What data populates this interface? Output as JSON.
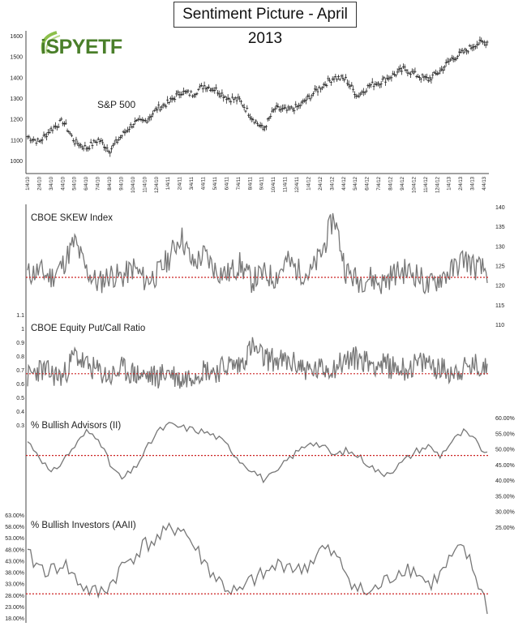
{
  "title": "Sentiment Picture - April 2013",
  "logo": {
    "text": "iSPYETF",
    "color": "#4a7f2a"
  },
  "colors": {
    "line": "#777777",
    "ref": "#cc2222",
    "text": "#222222"
  },
  "chart_data": [
    {
      "type": "ohlc",
      "label": "S&P 500",
      "yticks": [
        "1600",
        "1500",
        "1400",
        "1300",
        "1200",
        "1100",
        "1000"
      ],
      "ytick_values": [
        1600,
        1500,
        1400,
        1300,
        1200,
        1100,
        1000
      ],
      "ylim": [
        1000,
        1600
      ],
      "xticks": [
        "1/4/10",
        "2/4/10",
        "3/4/10",
        "4/4/10",
        "5/4/10",
        "6/4/10",
        "7/4/10",
        "8/4/10",
        "9/4/10",
        "10/4/10",
        "11/4/10",
        "12/4/10",
        "1/4/11",
        "2/4/11",
        "3/4/11",
        "4/4/11",
        "5/4/11",
        "6/4/11",
        "7/4/11",
        "8/4/11",
        "9/4/11",
        "10/4/11",
        "11/4/11",
        "12/4/11",
        "1/4/12",
        "2/4/12",
        "3/4/12",
        "4/4/12",
        "5/4/12",
        "6/4/12",
        "7/4/12",
        "8/4/12",
        "9/4/12",
        "10/4/12",
        "11/4/12",
        "12/4/12",
        "1/4/13",
        "2/4/13",
        "3/4/13",
        "4/4/13"
      ],
      "monthly_close": [
        1115,
        1090,
        1150,
        1190,
        1090,
        1060,
        1100,
        1050,
        1120,
        1180,
        1190,
        1250,
        1280,
        1330,
        1320,
        1360,
        1340,
        1300,
        1290,
        1210,
        1150,
        1250,
        1240,
        1260,
        1310,
        1360,
        1400,
        1390,
        1310,
        1360,
        1380,
        1410,
        1440,
        1410,
        1390,
        1430,
        1490,
        1520,
        1560,
        1570
      ]
    },
    {
      "type": "line",
      "label": "CBOE SKEW Index",
      "yticks": [
        "140",
        "135",
        "130",
        "125",
        "120",
        "115",
        "110"
      ],
      "ytick_values": [
        140,
        135,
        130,
        125,
        120,
        115,
        110
      ],
      "ylim": [
        110,
        140
      ],
      "reference": 120,
      "monthly": [
        121,
        122,
        120,
        124,
        131,
        122,
        118,
        121,
        120,
        123,
        119,
        121,
        126,
        133,
        124,
        127,
        122,
        121,
        124,
        119,
        121,
        120,
        125,
        122,
        121,
        128,
        139,
        122,
        119,
        120,
        118,
        121,
        122,
        121,
        117,
        120,
        122,
        126,
        123,
        122
      ]
    },
    {
      "type": "line",
      "label": "CBOE Equity Put/Call Ratio",
      "yticks": [
        "1.1",
        "1",
        "0.9",
        "0.8",
        "0.7",
        "0.6",
        "0.5",
        "0.4",
        "0.3"
      ],
      "ytick_values": [
        1.1,
        1,
        0.9,
        0.8,
        0.7,
        0.6,
        0.5,
        0.4,
        0.3
      ],
      "ylim": [
        0.3,
        1.1
      ],
      "reference": 0.58,
      "monthly": [
        0.55,
        0.62,
        0.58,
        0.55,
        0.75,
        0.65,
        0.6,
        0.55,
        0.62,
        0.58,
        0.56,
        0.55,
        0.6,
        0.52,
        0.58,
        0.62,
        0.6,
        0.66,
        0.65,
        0.82,
        0.72,
        0.7,
        0.68,
        0.66,
        0.6,
        0.62,
        0.64,
        0.7,
        0.72,
        0.68,
        0.66,
        0.64,
        0.62,
        0.66,
        0.68,
        0.62,
        0.6,
        0.62,
        0.65,
        0.62
      ]
    },
    {
      "type": "line",
      "label": "% Bullish Advisors (II)",
      "yticks": [
        "60.00%",
        "55.00%",
        "50.00%",
        "45.00%",
        "40.00%",
        "35.00%",
        "30.00%",
        "25.00%"
      ],
      "ytick_values": [
        60,
        55,
        50,
        45,
        40,
        35,
        30,
        25
      ],
      "ylim": [
        25,
        60
      ],
      "reference": 44,
      "monthly": [
        50,
        44,
        36,
        42,
        48,
        54,
        52,
        40,
        34,
        38,
        46,
        54,
        57,
        56,
        55,
        54,
        52,
        48,
        42,
        38,
        34,
        36,
        42,
        46,
        50,
        48,
        44,
        46,
        44,
        40,
        36,
        38,
        42,
        46,
        48,
        44,
        50,
        54,
        50,
        44
      ]
    },
    {
      "type": "line",
      "label": "% Bullish Investors (AAII)",
      "yticks": [
        "63.00%",
        "58.00%",
        "53.00%",
        "48.00%",
        "43.00%",
        "38.00%",
        "33.00%",
        "28.00%",
        "23.00%",
        "18.00%"
      ],
      "ytick_values": [
        63,
        58,
        53,
        48,
        43,
        38,
        33,
        28,
        23,
        18
      ],
      "ylim": [
        18,
        63
      ],
      "reference": 28,
      "monthly": [
        45,
        40,
        38,
        42,
        35,
        30,
        28,
        32,
        40,
        45,
        50,
        52,
        56,
        58,
        50,
        42,
        35,
        30,
        28,
        34,
        36,
        40,
        42,
        38,
        42,
        48,
        45,
        38,
        30,
        28,
        32,
        36,
        40,
        38,
        32,
        36,
        44,
        48,
        36,
        22
      ]
    }
  ]
}
